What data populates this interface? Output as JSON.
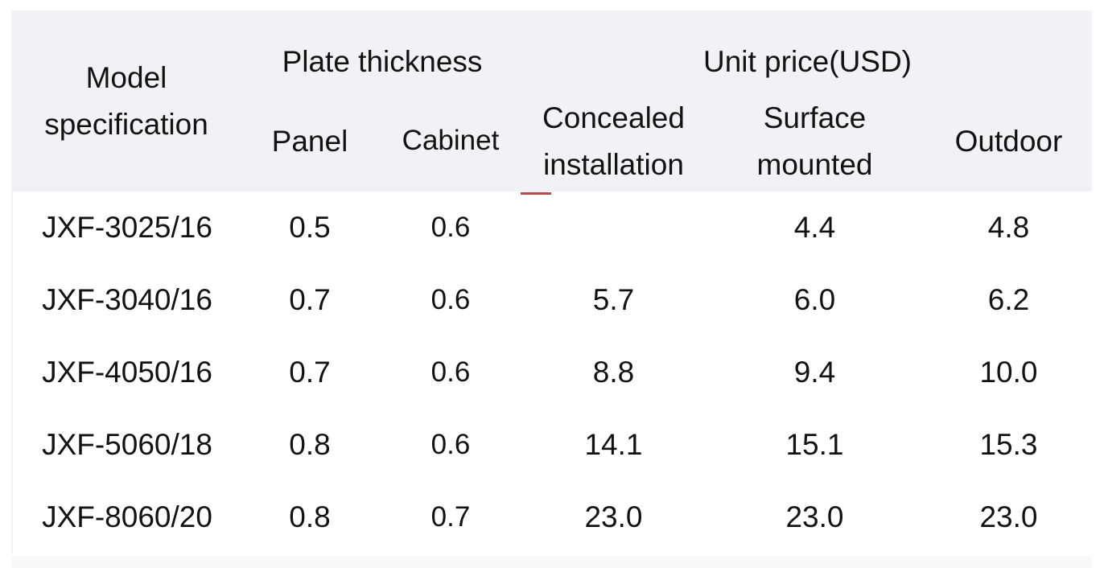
{
  "table": {
    "header": {
      "model_spec": "Model specification",
      "group_plate": "Plate thickness",
      "group_price": "Unit price(USD)",
      "panel": "Panel",
      "cabinet": "Cabinet",
      "concealed": "Concealed installation",
      "surface": "Surface mounted",
      "outdoor": "Outdoor"
    },
    "rows": [
      {
        "model": "JXF-3025/16",
        "panel": "0.5",
        "cabinet": "0.6",
        "concealed": "",
        "surface": "4.4",
        "outdoor": "4.8"
      },
      {
        "model": "JXF-3040/16",
        "panel": "0.7",
        "cabinet": "0.6",
        "concealed": "5.7",
        "surface": "6.0",
        "outdoor": "6.2"
      },
      {
        "model": "JXF-4050/16",
        "panel": "0.7",
        "cabinet": "0.6",
        "concealed": "8.8",
        "surface": "9.4",
        "outdoor": "10.0"
      },
      {
        "model": "JXF-5060/18",
        "panel": "0.8",
        "cabinet": "0.6",
        "concealed": "14.1",
        "surface": "15.1",
        "outdoor": "15.3"
      },
      {
        "model": "JXF-8060/20",
        "panel": "0.8",
        "cabinet": "0.7",
        "concealed": "23.0",
        "surface": "23.0",
        "outdoor": "23.0"
      }
    ]
  },
  "colors": {
    "header_background": "#f1f2f6",
    "text": "#121212",
    "red_mark": "#b8494a",
    "footer_bar": "#f7f8fa"
  }
}
